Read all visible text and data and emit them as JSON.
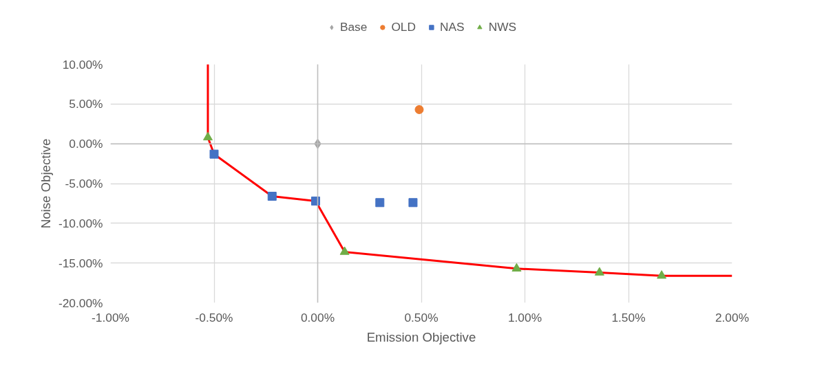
{
  "chart_data": {
    "type": "scatter",
    "xlabel": "Emission Objective",
    "ylabel": "Noise Objective",
    "xlim": [
      -1.0,
      2.0
    ],
    "xticks": [
      {
        "value": -1.0,
        "label": "-1.00%"
      },
      {
        "value": -0.5,
        "label": "-0.50%"
      },
      {
        "value": 0.0,
        "label": "0.00%"
      },
      {
        "value": 0.5,
        "label": "0.50%"
      },
      {
        "value": 1.0,
        "label": "1.00%"
      },
      {
        "value": 1.5,
        "label": "1.50%"
      },
      {
        "value": 2.0,
        "label": "2.00%"
      }
    ],
    "ylim": [
      -20.0,
      10.0
    ],
    "yticks": [
      {
        "value": -20.0,
        "label": "-20.00%"
      },
      {
        "value": -15.0,
        "label": "-15.00%"
      },
      {
        "value": -10.0,
        "label": "-10.00%"
      },
      {
        "value": -5.0,
        "label": "-5.00%"
      },
      {
        "value": 0.0,
        "label": "0.00%"
      },
      {
        "value": 5.0,
        "label": "5.00%"
      },
      {
        "value": 10.0,
        "label": "10.00%"
      }
    ],
    "grid": true,
    "legend": "top",
    "series": [
      {
        "type": "line",
        "color": "#ff0000",
        "marker": "none",
        "x": [
          -0.53,
          -0.53,
          -0.5,
          -0.22,
          -0.01,
          0.13,
          0.96,
          1.36,
          1.66,
          2.0
        ],
        "values": [
          10.0,
          0.8,
          -1.3,
          -6.6,
          -7.2,
          -13.6,
          -15.7,
          -16.2,
          -16.6,
          -16.6
        ]
      },
      {
        "name": "Base",
        "color": "#a5a5a5",
        "marker": "diamond",
        "x": [
          0.0
        ],
        "values": [
          0.0
        ]
      },
      {
        "name": "OLD",
        "color": "#ed7d31",
        "marker": "circle",
        "x": [
          0.49
        ],
        "values": [
          4.3
        ]
      },
      {
        "name": "NAS",
        "color": "#4472c4",
        "marker": "square",
        "x": [
          -0.5,
          -0.22,
          -0.01,
          0.3,
          0.46
        ],
        "values": [
          -1.3,
          -6.6,
          -7.2,
          -7.4,
          -7.4
        ]
      },
      {
        "name": "NWS",
        "color": "#70ad47",
        "marker": "triangle",
        "x": [
          -0.53,
          0.13,
          0.96,
          1.36,
          1.66
        ],
        "values": [
          0.8,
          -13.6,
          -15.7,
          -16.2,
          -16.6
        ]
      }
    ]
  }
}
